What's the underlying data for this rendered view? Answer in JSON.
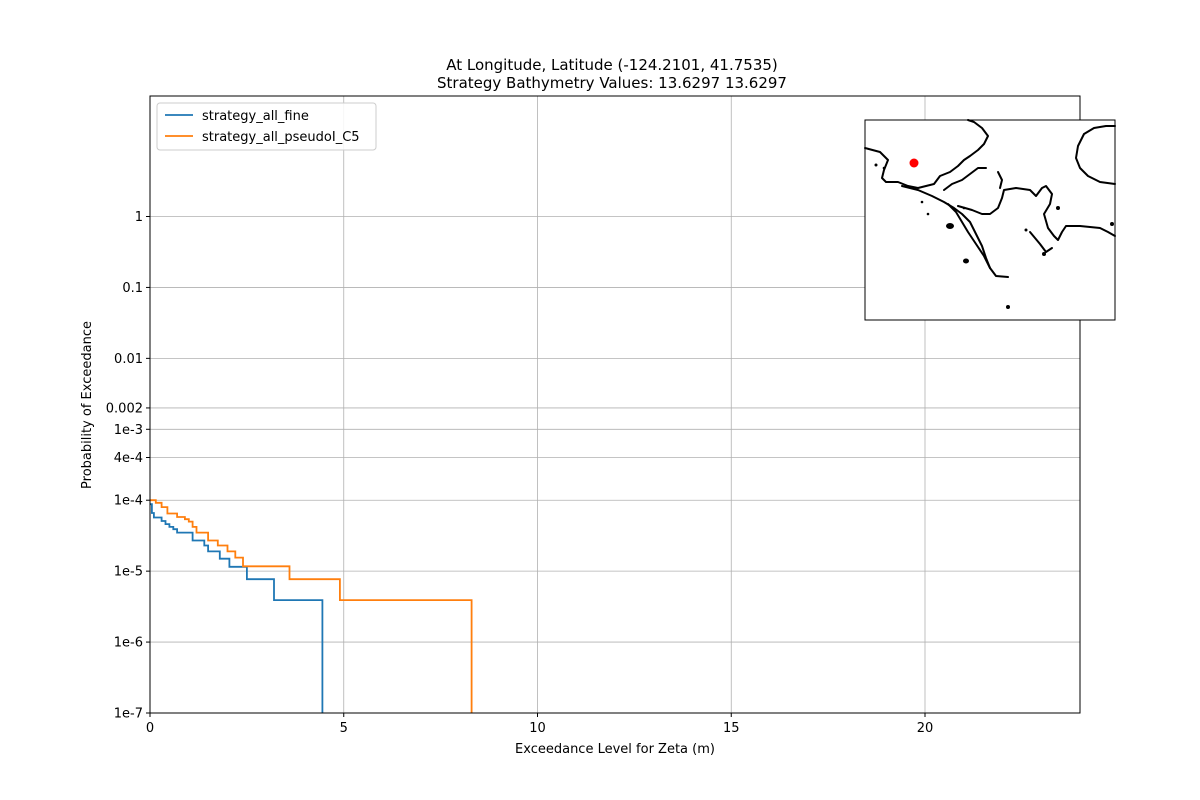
{
  "chart_data": {
    "type": "line",
    "title": "At Longitude, Latitude (-124.2101,  41.7535)",
    "subtitle": "Strategy Bathymetry Values:   13.6297   13.6297",
    "xlabel": "Exceedance Level for Zeta (m)",
    "ylabel": "Probability of Exceedance",
    "xlim": [
      0,
      24
    ],
    "ylim": [
      1e-07,
      50
    ],
    "yscale": "log",
    "grid": true,
    "legend_position": "top-left",
    "x_ticks": [
      {
        "value": 0,
        "label": "0"
      },
      {
        "value": 5,
        "label": "5"
      },
      {
        "value": 10,
        "label": "10"
      },
      {
        "value": 15,
        "label": "15"
      },
      {
        "value": 20,
        "label": "20"
      }
    ],
    "y_ticks": [
      {
        "value": 1,
        "label": "1"
      },
      {
        "value": 0.1,
        "label": "0.1"
      },
      {
        "value": 0.01,
        "label": "0.01"
      },
      {
        "value": 0.002,
        "label": "0.002"
      },
      {
        "value": 0.001,
        "label": "1e-3"
      },
      {
        "value": 0.0004,
        "label": "4e-4"
      },
      {
        "value": 0.0001,
        "label": "1e-4"
      },
      {
        "value": 1e-05,
        "label": "1e-5"
      },
      {
        "value": 1e-06,
        "label": "1e-6"
      },
      {
        "value": 1e-07,
        "label": "1e-7"
      }
    ],
    "series": [
      {
        "name": "strategy_all_fine",
        "color": "#1f77b4",
        "step": "post",
        "x": [
          0,
          0.05,
          0.1,
          0.3,
          0.4,
          0.5,
          0.6,
          0.7,
          1.1,
          1.4,
          1.5,
          1.8,
          2.05,
          2.5,
          3.2,
          4.45,
          4.45
        ],
        "y": [
          8.8e-05,
          6.6e-05,
          5.7e-05,
          5.1e-05,
          4.6e-05,
          4.2e-05,
          3.9e-05,
          3.5e-05,
          2.7e-05,
          2.3e-05,
          1.9e-05,
          1.5e-05,
          1.15e-05,
          7.7e-06,
          3.9e-06,
          3.9e-06,
          1e-07
        ]
      },
      {
        "name": "strategy_all_pseudoI_C5",
        "color": "#ff7f0e",
        "step": "post",
        "x": [
          0,
          0.15,
          0.3,
          0.45,
          0.7,
          0.9,
          1.0,
          1.1,
          1.2,
          1.5,
          1.75,
          2.0,
          2.2,
          2.4,
          3.6,
          4.9,
          8.3,
          8.3
        ],
        "y": [
          0.0001,
          9.2e-05,
          8e-05,
          6.5e-05,
          5.8e-05,
          5.4e-05,
          5e-05,
          4.2e-05,
          3.5e-05,
          2.7e-05,
          2.3e-05,
          1.9e-05,
          1.55e-05,
          1.17e-05,
          7.7e-06,
          3.9e-06,
          3.9e-06,
          1e-07
        ]
      }
    ],
    "inset_map": {
      "location_marker_color": "#ff0000",
      "coastline_color": "#000000"
    }
  }
}
